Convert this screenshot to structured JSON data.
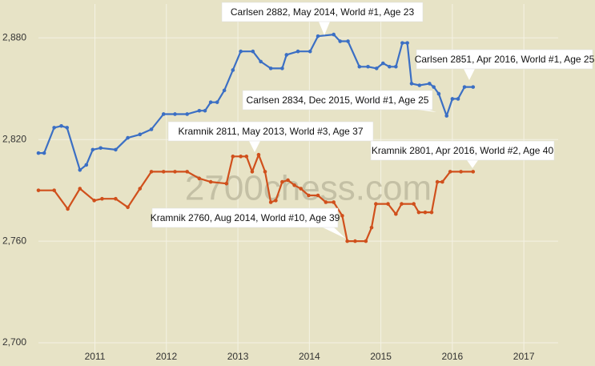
{
  "chart_data": {
    "type": "line",
    "watermark": "2700chess.com",
    "xlim": [
      2010.21,
      2017.48
    ],
    "xticks": [
      2011,
      2012,
      2013,
      2014,
      2015,
      2016,
      2017
    ],
    "ylim": [
      2700,
      2900
    ],
    "yticks": [
      {
        "value": 2700,
        "label": "2,700"
      },
      {
        "value": 2760,
        "label": "2,760"
      },
      {
        "value": 2820,
        "label": "2,820"
      },
      {
        "value": 2880,
        "label": "2,880"
      }
    ],
    "grid": true,
    "series": [
      {
        "color": "#3b6fc4",
        "x": [
          2010.21,
          2010.29,
          2010.43,
          2010.53,
          2010.61,
          2010.79,
          2010.88,
          2010.97,
          2011.08,
          2011.29,
          2011.46,
          2011.63,
          2011.79,
          2011.96,
          2012.12,
          2012.29,
          2012.46,
          2012.54,
          2012.62,
          2012.71,
          2012.81,
          2012.93,
          2013.04,
          2013.21,
          2013.32,
          2013.46,
          2013.62,
          2013.68,
          2013.84,
          2014.01,
          2014.12,
          2014.34,
          2014.43,
          2014.54,
          2014.7,
          2014.82,
          2014.94,
          2015.03,
          2015.12,
          2015.21,
          2015.3,
          2015.37,
          2015.43,
          2015.54,
          2015.68,
          2015.74,
          2015.81,
          2015.92,
          2016.0,
          2016.08,
          2016.17,
          2016.29
        ],
        "values": [
          2812,
          2812,
          2827,
          2828,
          2827,
          2802,
          2805,
          2814,
          2815,
          2814,
          2821,
          2823,
          2826,
          2835,
          2835,
          2835,
          2837,
          2837,
          2842,
          2842,
          2849,
          2861,
          2872,
          2872,
          2866,
          2862,
          2862,
          2870,
          2872,
          2872,
          2881,
          2882,
          2878,
          2878,
          2863,
          2863,
          2862,
          2865,
          2863,
          2863,
          2877,
          2877,
          2853,
          2852,
          2853,
          2851,
          2847,
          2834,
          2844,
          2844,
          2851,
          2851
        ]
      },
      {
        "color": "#d0501c",
        "x": [
          2010.21,
          2010.43,
          2010.62,
          2010.79,
          2010.99,
          2011.1,
          2011.29,
          2011.46,
          2011.63,
          2011.79,
          2011.96,
          2012.12,
          2012.29,
          2012.46,
          2012.62,
          2012.84,
          2012.93,
          2013.04,
          2013.12,
          2013.2,
          2013.29,
          2013.38,
          2013.46,
          2013.53,
          2013.62,
          2013.7,
          2013.79,
          2013.88,
          2013.99,
          2014.12,
          2014.23,
          2014.34,
          2014.46,
          2014.53,
          2014.64,
          2014.79,
          2014.87,
          2014.93,
          2015.1,
          2015.21,
          2015.29,
          2015.46,
          2015.53,
          2015.62,
          2015.71,
          2015.79,
          2015.86,
          2015.97,
          2016.12,
          2016.29
        ],
        "values": [
          2790,
          2790,
          2779,
          2791,
          2784,
          2785,
          2785,
          2780,
          2791,
          2801,
          2801,
          2801,
          2801,
          2797,
          2795,
          2794,
          2810,
          2810,
          2810,
          2801,
          2811,
          2801,
          2783,
          2784,
          2795,
          2796,
          2793,
          2791,
          2787,
          2787,
          2783,
          2783,
          2775,
          2760,
          2760,
          2760,
          2768,
          2782,
          2782,
          2776,
          2782,
          2782,
          2777,
          2777,
          2777,
          2795,
          2795,
          2801,
          2801,
          2801
        ]
      }
    ],
    "annotations": [
      "Carlsen 2882, May 2014, World #1, Age 23",
      "Carlsen 2851, Apr 2016, World #1, Age 25",
      "Carlsen 2834, Dec 2015, World #1, Age 25",
      "Kramnik 2811, May 2013, World #3, Age 37",
      "Kramnik 2801, Apr 2016, World #2, Age 40",
      "Kramnik 2760, Aug 2014, World #10, Age 39"
    ]
  }
}
